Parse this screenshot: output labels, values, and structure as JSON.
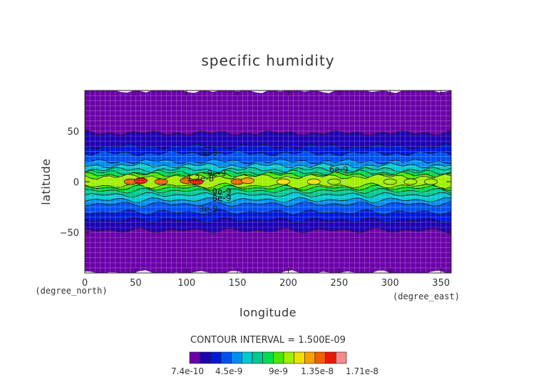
{
  "chart_data": {
    "type": "heatmap",
    "title": "specific humidity",
    "xlabel": "longitude",
    "ylabel": "latitude",
    "x_unit": "(degree_east)",
    "y_unit": "(degree_north)",
    "xlim": [
      0,
      360
    ],
    "ylim": [
      -90,
      90
    ],
    "x_ticks": [
      0,
      50,
      100,
      150,
      200,
      250,
      300,
      350
    ],
    "y_ticks": [
      -50,
      0,
      50
    ],
    "x_tick_labels": [
      "0",
      "50",
      "100",
      "150",
      "200",
      "250",
      "300",
      "350"
    ],
    "y_tick_labels": [
      "−50",
      "0",
      "50"
    ],
    "grid": true,
    "contour_interval": "CONTOUR INTERVAL = 1.500E-09",
    "contour_labels": [
      {
        "text": "3e-9",
        "lon": 112,
        "lat": 29
      },
      {
        "text": "9e-9",
        "lon": 120,
        "lat": 8
      },
      {
        "text": "6e-9",
        "lon": 240,
        "lat": 12
      },
      {
        "text": "1.2e-8",
        "lon": 100,
        "lat": 3
      },
      {
        "text": "9e-9",
        "lon": 125,
        "lat": -10
      },
      {
        "text": "6e-9",
        "lon": 125,
        "lat": -16
      },
      {
        "text": "3e-9",
        "lon": 112,
        "lat": -27
      }
    ],
    "bands": [
      {
        "min_lat": -90,
        "max_lat": 90,
        "level": 0
      },
      {
        "min_lat": -48,
        "max_lat": 48,
        "level": 1
      },
      {
        "min_lat": -38,
        "max_lat": 35,
        "level": 2
      },
      {
        "min_lat": -30,
        "max_lat": 28,
        "level": 3
      },
      {
        "min_lat": -22,
        "max_lat": 20,
        "level": 4
      },
      {
        "min_lat": -18,
        "max_lat": 16,
        "level": 5
      },
      {
        "min_lat": -13,
        "max_lat": 12,
        "level": 6
      },
      {
        "min_lat": -9,
        "max_lat": 9,
        "level": 7
      },
      {
        "min_lat": -6,
        "max_lat": 7,
        "level": 8
      },
      {
        "min_lat": -4,
        "max_lat": 5,
        "level": 9
      }
    ],
    "hot_spots": [
      {
        "lon": 45,
        "lat": 0,
        "level": 12
      },
      {
        "lon": 55,
        "lat": 1,
        "level": 13
      },
      {
        "lon": 75,
        "lat": 0,
        "level": 12
      },
      {
        "lon": 100,
        "lat": 1,
        "level": 12
      },
      {
        "lon": 110,
        "lat": 0,
        "level": 13
      },
      {
        "lon": 150,
        "lat": 0,
        "level": 12
      },
      {
        "lon": 160,
        "lat": 1,
        "level": 11
      },
      {
        "lon": 195,
        "lat": 0,
        "level": 10
      },
      {
        "lon": 225,
        "lat": 0,
        "level": 10
      },
      {
        "lon": 245,
        "lat": 0,
        "level": 9
      },
      {
        "lon": 300,
        "lat": 0,
        "level": 9
      },
      {
        "lon": 320,
        "lat": 0,
        "level": 9
      },
      {
        "lon": 340,
        "lat": 0,
        "level": 9
      }
    ],
    "colorbar": {
      "colors": [
        "#6a00a8",
        "#1e00b4",
        "#0018d8",
        "#0050f0",
        "#008cf0",
        "#00c8d0",
        "#00c890",
        "#00dc50",
        "#48e800",
        "#a0f000",
        "#f0e000",
        "#f8a000",
        "#f06000",
        "#e81808",
        "#f48a8a"
      ],
      "labels": [
        "7.4e-10",
        "4.5e-9",
        "9e-9",
        "1.35e-8",
        "1.71e-8"
      ]
    }
  }
}
